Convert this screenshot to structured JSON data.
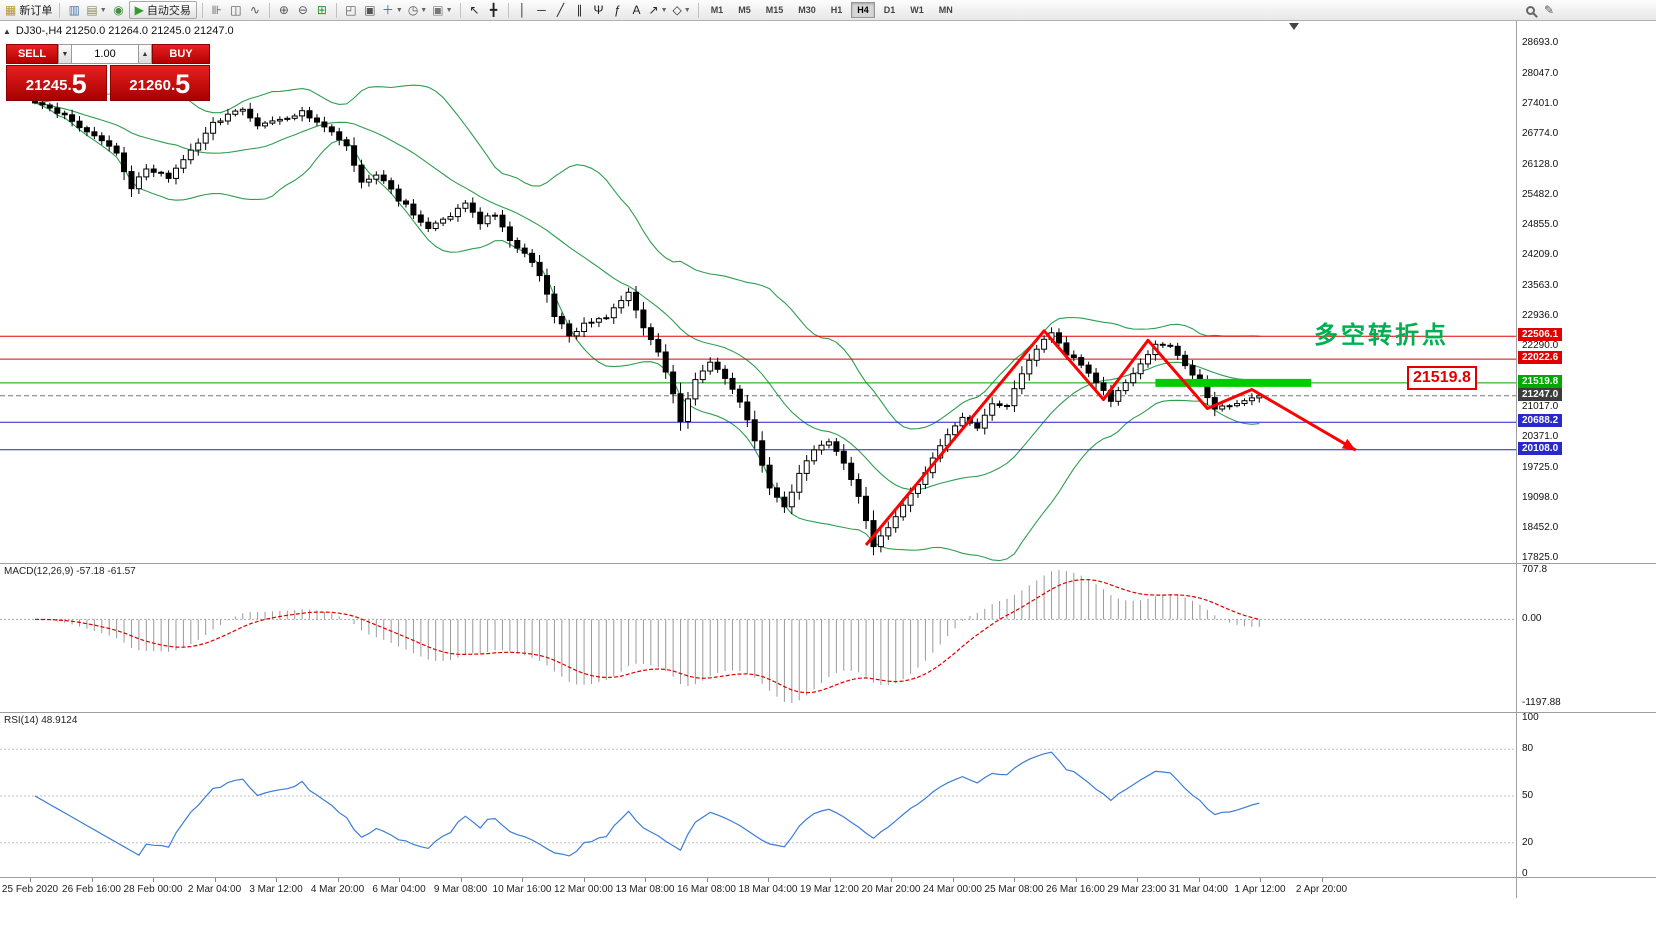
{
  "toolbar": {
    "groups": [
      [
        {
          "name": "new-order-button",
          "glyph": "▦",
          "color": "#b8962e",
          "label": "新订单"
        }
      ],
      [
        {
          "name": "charts-icon",
          "glyph": "▥",
          "color": "#4a78b0"
        },
        {
          "name": "profiles-icon",
          "glyph": "▤",
          "color": "#8a8a5a",
          "dropdown": true
        },
        {
          "name": "navigator-icon",
          "glyph": "◉",
          "color": "#3f8f3f"
        },
        {
          "name": "autotrading-button",
          "glyph": "▶",
          "color": "#2f9e2f",
          "label": "自动交易",
          "boxed": true
        }
      ],
      [
        {
          "name": "bar-chart-icon",
          "glyph": "⊪",
          "color": "#555"
        },
        {
          "name": "candlestick-chart-icon",
          "glyph": "◫",
          "color": "#555"
        },
        {
          "name": "line-chart-icon",
          "glyph": "∿",
          "color": "#555"
        }
      ],
      [
        {
          "name": "zoom-in-icon",
          "glyph": "⊕",
          "color": "#555"
        },
        {
          "name": "zoom-out-icon",
          "glyph": "⊖",
          "color": "#555"
        },
        {
          "name": "grid-icon",
          "glyph": "⊞",
          "color": "#2f8f2f"
        }
      ],
      [
        {
          "name": "tile-windows-icon",
          "glyph": "◰",
          "color": "#555"
        },
        {
          "name": "cascade-windows-icon",
          "glyph": "▣",
          "color": "#555"
        },
        {
          "name": "new-chart-button",
          "glyph": "＋",
          "color": "#3a6ea5",
          "dropdown": true
        },
        {
          "name": "period-clock-icon",
          "glyph": "◷",
          "color": "#555",
          "dropdown": true
        },
        {
          "name": "snapshot-icon",
          "glyph": "▣",
          "color": "#777",
          "dropdown": true
        }
      ],
      [
        {
          "name": "cursor-icon",
          "glyph": "↖",
          "color": "#222"
        },
        {
          "name": "crosshair-icon",
          "glyph": "╋",
          "color": "#222"
        }
      ],
      [
        {
          "name": "vertical-line-icon",
          "glyph": "│",
          "color": "#222"
        },
        {
          "name": "horizontal-line-icon",
          "glyph": "─",
          "color": "#222"
        },
        {
          "name": "trendline-icon",
          "glyph": "╱",
          "color": "#222"
        },
        {
          "name": "channel-icon",
          "glyph": "∥",
          "color": "#222"
        },
        {
          "name": "pitchfork-icon",
          "glyph": "Ψ",
          "color": "#222"
        },
        {
          "name": "fibonacci-icon",
          "glyph": "ƒ",
          "color": "#222"
        },
        {
          "name": "text-icon",
          "glyph": "A",
          "color": "#222"
        },
        {
          "name": "arrows-icon",
          "glyph": "↗",
          "color": "#222",
          "dropdown": true
        },
        {
          "name": "shapes-icon",
          "glyph": "◇",
          "color": "#222",
          "dropdown": true
        }
      ]
    ],
    "timeframes": {
      "items": [
        "M1",
        "M5",
        "M15",
        "M30",
        "H1",
        "H4",
        "D1",
        "W1",
        "MN"
      ],
      "active": "H4"
    },
    "right_icons": [
      {
        "name": "search-icon",
        "type": "mag"
      },
      {
        "name": "edit-icon",
        "glyph": "✎",
        "color": "#555"
      }
    ]
  },
  "chart": {
    "symbol_info": "DJ30-,H4  21250.0 21264.0 21245.0 21247.0",
    "annotation_text": "多空转折点",
    "level_label": "21519.8"
  },
  "trade_panel": {
    "sell_label": "SELL",
    "buy_label": "BUY",
    "volume": "1.00",
    "sell_price_small": "21245.",
    "sell_price_big": "5",
    "buy_price_small": "21260.",
    "buy_price_big": "5"
  },
  "indicators": {
    "macd_label": "MACD(12,26,9) -57.18 -61.57",
    "rsi_label": "RSI(14) 48.9124",
    "macd_axis": [
      {
        "text": "707.8",
        "value": 707.8
      },
      {
        "text": "0.00",
        "value": 0
      },
      {
        "text": "-1197.88",
        "value": -1197.88
      }
    ],
    "rsi_axis": [
      {
        "text": "100",
        "value": 100
      },
      {
        "text": "80",
        "value": 80
      },
      {
        "text": "50",
        "value": 50
      },
      {
        "text": "20",
        "value": 20
      },
      {
        "text": "0",
        "value": 0
      }
    ]
  },
  "price_axis": {
    "labels": [
      {
        "text": "28693.0",
        "price": 28693.0
      },
      {
        "text": "28047.0",
        "price": 28047.0
      },
      {
        "text": "27401.0",
        "price": 27401.0
      },
      {
        "text": "26774.0",
        "price": 26774.0
      },
      {
        "text": "26128.0",
        "price": 26128.0
      },
      {
        "text": "25482.0",
        "price": 25482.0
      },
      {
        "text": "24855.0",
        "price": 24855.0
      },
      {
        "text": "24209.0",
        "price": 24209.0
      },
      {
        "text": "23563.0",
        "price": 23563.0
      },
      {
        "text": "22936.0",
        "price": 22936.0
      },
      {
        "text": "22290.0",
        "price": 22290.0
      },
      {
        "text": "21017.0",
        "price": 21017.0
      },
      {
        "text": "20371.0",
        "price": 20371.0
      },
      {
        "text": "19725.0",
        "price": 19725.0
      },
      {
        "text": "19098.0",
        "price": 19098.0
      },
      {
        "text": "18452.0",
        "price": 18452.0
      },
      {
        "text": "17825.0",
        "price": 17825.0
      }
    ]
  },
  "time_axis": {
    "labels": [
      "25 Feb 2020",
      "26 Feb 16:00",
      "28 Feb 00:00",
      "2 Mar 04:00",
      "3 Mar 12:00",
      "4 Mar 20:00",
      "6 Mar 04:00",
      "9 Mar 08:00",
      "10 Mar 16:00",
      "12 Mar 00:00",
      "13 Mar 08:00",
      "16 Mar 08:00",
      "18 Mar 04:00",
      "19 Mar 12:00",
      "20 Mar 20:00",
      "24 Mar 00:00",
      "25 Mar 08:00",
      "26 Mar 16:00",
      "29 Mar 23:00",
      "31 Mar 04:00",
      "1 Apr 12:00",
      "2 Apr 20:00"
    ]
  },
  "chart_data": {
    "type": "candlestick",
    "symbol": "DJ30-",
    "timeframe": "H4",
    "ohlc_readout": {
      "open": 21250.0,
      "high": 21264.0,
      "low": 21245.0,
      "close": 21247.0
    },
    "ylim": [
      17825.0,
      28693.0
    ],
    "candle_count": 166,
    "waypoints": [
      [
        0,
        27430
      ],
      [
        4,
        27150
      ],
      [
        8,
        26750
      ],
      [
        11,
        26350
      ],
      [
        13,
        25650
      ],
      [
        15,
        26050
      ],
      [
        18,
        25880
      ],
      [
        21,
        26400
      ],
      [
        24,
        27000
      ],
      [
        28,
        27300
      ],
      [
        30,
        26950
      ],
      [
        33,
        27050
      ],
      [
        36,
        27250
      ],
      [
        39,
        26950
      ],
      [
        42,
        26550
      ],
      [
        44,
        25750
      ],
      [
        46,
        25950
      ],
      [
        49,
        25400
      ],
      [
        51,
        25100
      ],
      [
        53,
        24750
      ],
      [
        56,
        25050
      ],
      [
        58,
        25300
      ],
      [
        60,
        24900
      ],
      [
        62,
        25100
      ],
      [
        64,
        24500
      ],
      [
        66,
        24300
      ],
      [
        68,
        23800
      ],
      [
        70,
        22950
      ],
      [
        72,
        22500
      ],
      [
        74,
        22750
      ],
      [
        77,
        22900
      ],
      [
        80,
        23400
      ],
      [
        82,
        22700
      ],
      [
        84,
        22150
      ],
      [
        86,
        21300
      ],
      [
        87,
        20750
      ],
      [
        89,
        21600
      ],
      [
        91,
        22000
      ],
      [
        93,
        21650
      ],
      [
        95,
        21100
      ],
      [
        97,
        20300
      ],
      [
        99,
        19300
      ],
      [
        101,
        18900
      ],
      [
        103,
        19600
      ],
      [
        105,
        20150
      ],
      [
        107,
        20300
      ],
      [
        109,
        19850
      ],
      [
        111,
        19100
      ],
      [
        113,
        18050
      ],
      [
        115,
        18450
      ],
      [
        117,
        18950
      ],
      [
        119,
        19350
      ],
      [
        121,
        19900
      ],
      [
        123,
        20450
      ],
      [
        125,
        20800
      ],
      [
        127,
        20600
      ],
      [
        129,
        21100
      ],
      [
        131,
        21050
      ],
      [
        133,
        21750
      ],
      [
        135,
        22250
      ],
      [
        137,
        22600
      ],
      [
        139,
        22150
      ],
      [
        141,
        21900
      ],
      [
        143,
        21500
      ],
      [
        145,
        21150
      ],
      [
        147,
        21550
      ],
      [
        149,
        21950
      ],
      [
        151,
        22350
      ],
      [
        153,
        22250
      ],
      [
        155,
        21900
      ],
      [
        157,
        21500
      ],
      [
        159,
        21000
      ],
      [
        161,
        21080
      ],
      [
        163,
        21160
      ],
      [
        165,
        21247
      ]
    ],
    "levels": [
      {
        "price": 22506.1,
        "color": "#e00000",
        "style": "solid",
        "badge_text": "22506.1",
        "badge_bg": "#e00000"
      },
      {
        "price": 22022.6,
        "color": "#e00000",
        "style": "solid",
        "badge_text": "22022.6",
        "badge_bg": "#e00000"
      },
      {
        "price": 21519.8,
        "color": "#00a000",
        "style": "solid",
        "badge_text": "21519.8",
        "badge_bg": "#00a800"
      },
      {
        "price": 21247.0,
        "color": "#777777",
        "style": "dashed",
        "badge_text": "21247.0",
        "badge_bg": "#3c3c3c"
      },
      {
        "price": 20688.2,
        "color": "#2222cc",
        "style": "solid",
        "badge_text": "20688.2",
        "badge_bg": "#2828cc"
      },
      {
        "price": 20108.0,
        "color": "#2222cc",
        "style": "solid",
        "badge_text": "20108.0",
        "badge_bg": "#2828cc"
      }
    ],
    "green_bar": {
      "from_index": 151,
      "to_index": 172,
      "price": 21519.8,
      "color": "#00cc00"
    },
    "trend": {
      "color": "#ff0000",
      "points": [
        [
          112,
          18100
        ],
        [
          136,
          22620
        ],
        [
          144,
          21170
        ],
        [
          150,
          22420
        ],
        [
          158,
          20980
        ],
        [
          164,
          21380
        ],
        [
          178,
          20100
        ]
      ]
    },
    "bollinger": {
      "period": 20,
      "deviation": 2,
      "color": "#2e9e4f"
    },
    "macd": {
      "fast": 12,
      "slow": 26,
      "signal": 9,
      "current": [
        -57.18,
        -61.57
      ],
      "hist_color": "#9a9a9a",
      "signal_color": "#e00000"
    },
    "rsi": {
      "period": 14,
      "current": 48.9124,
      "color": "#3b7dd8",
      "levels": [
        80,
        50,
        20
      ]
    }
  }
}
